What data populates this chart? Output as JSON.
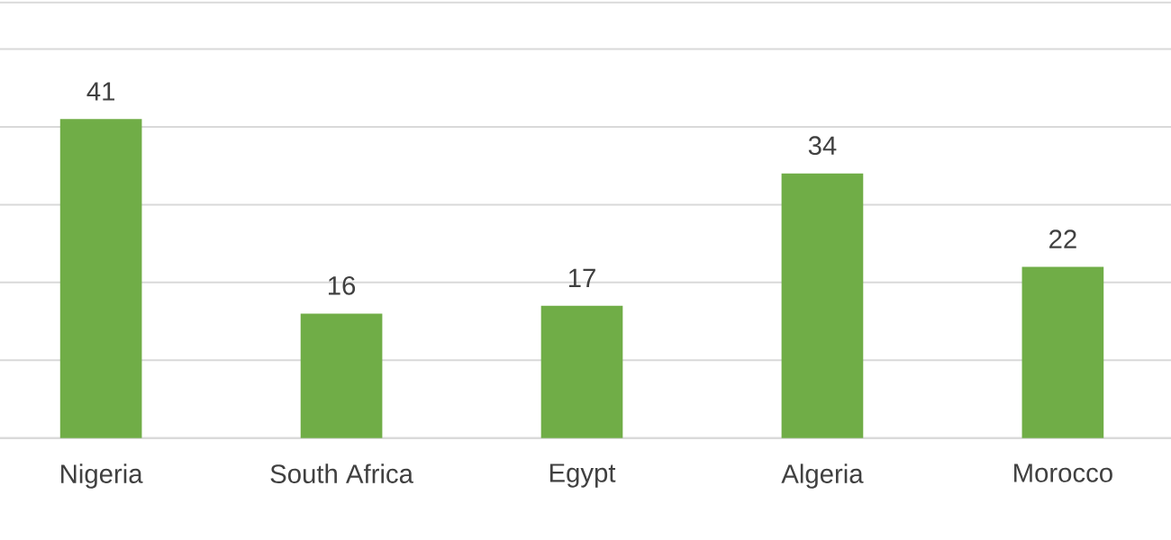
{
  "chart_data": {
    "type": "bar",
    "categories": [
      "Nigeria",
      "South Africa",
      "Egypt",
      "Algeria",
      "Morocco"
    ],
    "values": [
      41,
      16,
      17,
      34,
      22
    ],
    "color": "#70ad47",
    "ylim": [
      0,
      56
    ],
    "yticks": [
      {
        "value": 0,
        "label": null
      },
      {
        "value": 10,
        "label": null
      },
      {
        "value": 20,
        "label": null
      },
      {
        "value": 30,
        "label": null
      },
      {
        "value": 40,
        "label": null
      },
      {
        "value": 50,
        "label": null
      }
    ],
    "grid": "y",
    "tick_labels": "x",
    "data_labels": true
  }
}
